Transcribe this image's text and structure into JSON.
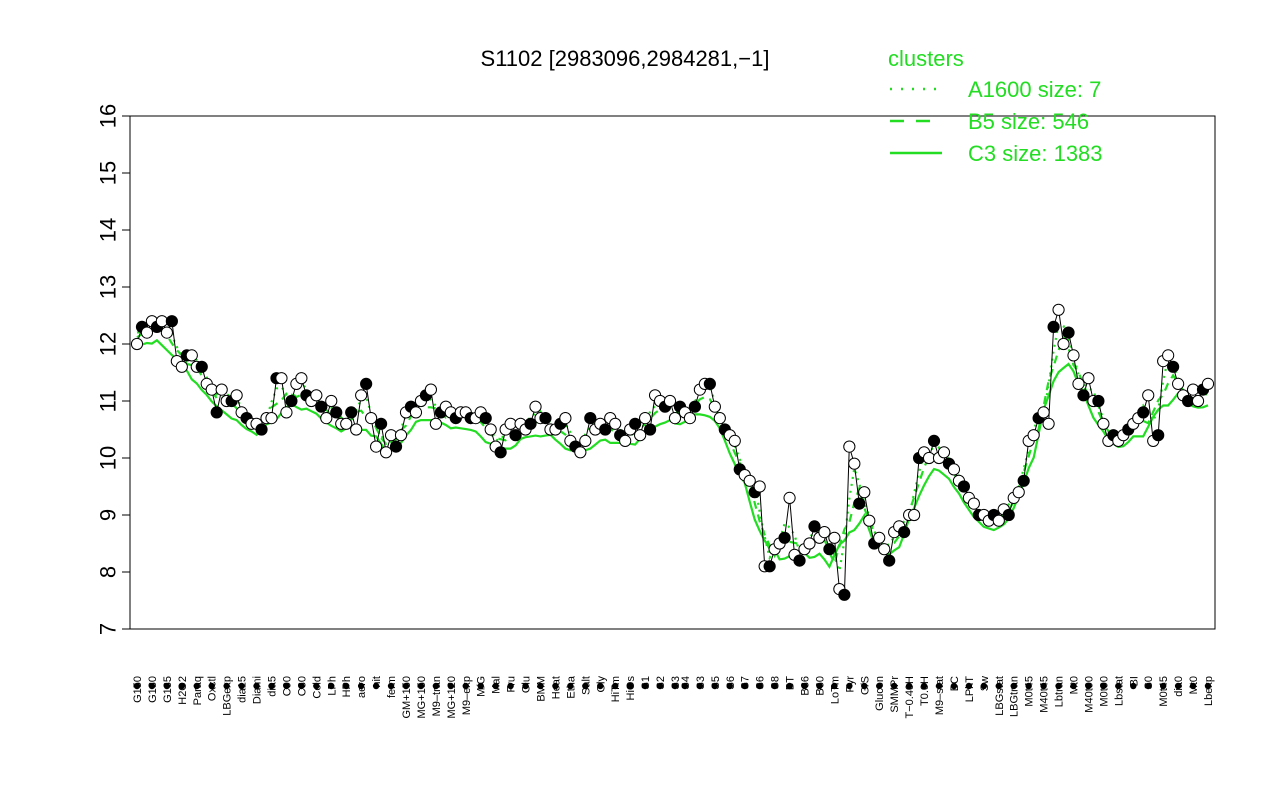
{
  "chart_data": {
    "type": "line",
    "title": "S1102 [2983096,2984281,−1]",
    "ylim": [
      7,
      16
    ],
    "yticks": [
      7,
      8,
      9,
      10,
      11,
      12,
      13,
      14,
      15,
      16
    ],
    "xlabel": "",
    "ylabel": "",
    "x_tick_labels": [
      "G150",
      "G180",
      "G135",
      "H2O2",
      "Paraq",
      "Oxctl",
      "LBGexp",
      "dia15",
      "Diami",
      "dia5",
      "C90",
      "C30",
      "Cold",
      "LPh",
      "HPh",
      "aero",
      "nit",
      "ferm",
      "GM+150",
      "MG+150",
      "M9–tran",
      "MG+120",
      "M9–exp",
      "M/G",
      "Mal",
      "Fru",
      "Glu",
      "BMM",
      "Heat",
      "Etha",
      "Salt",
      "Gly",
      "HiTm",
      "HiOs",
      "S1",
      "S2",
      "S3",
      "S4",
      "S3",
      "S5",
      "S6",
      "S7",
      "S6",
      "S8",
      "BT",
      "B36",
      "B60",
      "LoTm",
      "Pyr",
      "G/S",
      "Glucon",
      "SMMPr",
      "T−0.40H",
      "T0.0H",
      "M9–stat",
      "BC",
      "LPhT",
      "Sw",
      "LBGstat",
      "LBGtran",
      "M0t45",
      "M40t45",
      "Lbtran",
      "Mt0",
      "M40t90",
      "M0t90",
      "Lbstat",
      "BI",
      "S0",
      "M0t45",
      "dia0",
      "Mt0",
      "Lbexp"
    ],
    "legend": {
      "title": "clusters",
      "position": "top-right",
      "entries": [
        {
          "label": "A1600 size: 7",
          "style": "dotted"
        },
        {
          "label": "B5 size: 546",
          "style": "dashed"
        },
        {
          "label": "C3 size: 1383",
          "style": "solid"
        }
      ]
    },
    "series": [
      {
        "style": "points",
        "values": [
          12.0,
          12.3,
          12.2,
          12.4,
          12.3,
          12.4,
          12.2,
          12.4,
          11.7,
          11.6,
          11.8,
          11.8,
          11.6,
          11.6,
          11.3,
          11.2,
          10.8,
          11.2,
          11.0,
          11.0,
          11.1,
          10.8,
          10.7,
          10.6,
          10.6,
          10.5,
          10.7,
          10.7,
          11.4,
          11.4,
          10.8,
          11.0,
          11.3,
          11.4,
          11.1,
          11.0,
          11.1,
          10.9,
          10.7,
          11.0,
          10.8,
          10.6,
          10.6,
          10.8,
          10.5,
          11.1,
          11.3,
          10.7,
          10.2,
          10.6,
          10.1,
          10.4,
          10.2,
          10.4,
          10.8,
          10.9,
          10.8,
          11.0,
          11.1,
          11.2,
          10.6,
          10.8,
          10.9,
          10.8,
          10.7,
          10.8,
          10.8,
          10.7,
          10.7,
          10.8,
          10.7,
          10.5,
          10.2,
          10.1,
          10.5,
          10.6,
          10.4,
          10.6,
          10.5,
          10.6,
          10.9,
          10.7,
          10.7,
          10.5,
          10.5,
          10.6,
          10.7,
          10.3,
          10.2,
          10.1,
          10.3,
          10.7,
          10.5,
          10.6,
          10.5,
          10.7,
          10.6,
          10.4,
          10.3,
          10.5,
          10.6,
          10.4,
          10.7,
          10.5,
          11.1,
          11.0,
          10.9,
          11.0,
          10.7,
          10.9,
          10.8,
          10.7,
          10.9,
          11.2,
          11.3,
          11.3,
          10.9,
          10.7,
          10.5,
          10.4,
          10.3,
          9.8,
          9.7,
          9.6,
          9.4,
          9.5,
          8.1,
          8.1,
          8.4,
          8.5,
          8.6,
          9.3,
          8.3,
          8.2,
          8.4,
          8.5,
          8.8,
          8.6,
          8.7,
          8.4,
          8.6,
          7.7,
          7.6,
          10.2,
          9.9,
          9.2,
          9.4,
          8.9,
          8.5,
          8.6,
          8.4,
          8.2,
          8.7,
          8.8,
          8.7,
          9.0,
          9.0,
          10.0,
          10.1,
          10.0,
          10.3,
          10.0,
          10.1,
          9.9,
          9.8,
          9.6,
          9.5,
          9.3,
          9.2,
          9.0,
          9.0,
          8.9,
          9.0,
          8.9,
          9.1,
          9.0,
          9.3,
          9.4,
          9.6,
          10.3,
          10.4,
          10.7,
          10.8,
          10.6,
          12.3,
          12.6,
          12.0,
          12.2,
          11.8,
          11.3,
          11.1,
          11.4,
          11.0,
          11.0,
          10.6,
          10.3,
          10.4,
          10.3,
          10.4,
          10.5,
          10.6,
          10.7,
          10.8,
          11.1,
          10.3,
          10.4,
          11.7,
          11.8,
          11.6,
          11.3,
          11.1,
          11.0,
          11.2,
          11.0,
          11.2,
          11.3
        ]
      }
    ]
  }
}
